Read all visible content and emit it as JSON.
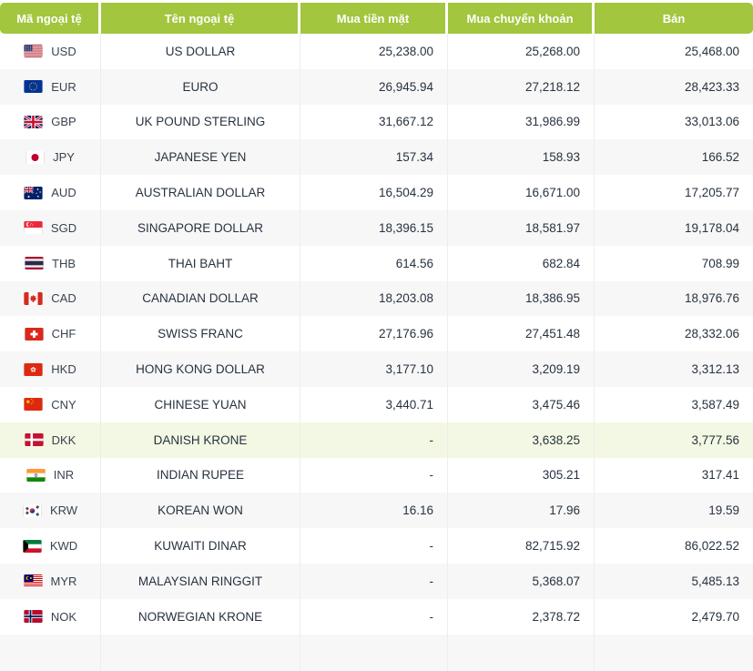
{
  "table": {
    "columns": [
      {
        "key": "code",
        "label": "Mã ngoại tệ"
      },
      {
        "key": "name",
        "label": "Tên ngoại tệ"
      },
      {
        "key": "cash",
        "label": "Mua tiền mặt"
      },
      {
        "key": "transfer",
        "label": "Mua chuyển khoản"
      },
      {
        "key": "sell",
        "label": "Bán"
      }
    ],
    "rows": [
      {
        "code": "USD",
        "flag": "usd-us-flag-icon",
        "name": "US DOLLAR",
        "cash": "25,238.00",
        "transfer": "25,268.00",
        "sell": "25,468.00",
        "highlighted": false
      },
      {
        "code": "EUR",
        "flag": "eur-eu-flag-icon",
        "name": "EURO",
        "cash": "26,945.94",
        "transfer": "27,218.12",
        "sell": "28,423.33",
        "highlighted": false
      },
      {
        "code": "GBP",
        "flag": "gbp-uk-flag-icon",
        "name": "UK POUND STERLING",
        "cash": "31,667.12",
        "transfer": "31,986.99",
        "sell": "33,013.06",
        "highlighted": false
      },
      {
        "code": "JPY",
        "flag": "jpy-japan-flag-icon",
        "name": "JAPANESE YEN",
        "cash": "157.34",
        "transfer": "158.93",
        "sell": "166.52",
        "highlighted": false
      },
      {
        "code": "AUD",
        "flag": "aud-australia-flag-icon",
        "name": "AUSTRALIAN DOLLAR",
        "cash": "16,504.29",
        "transfer": "16,671.00",
        "sell": "17,205.77",
        "highlighted": false
      },
      {
        "code": "SGD",
        "flag": "sgd-singapore-flag-icon",
        "name": "SINGAPORE DOLLAR",
        "cash": "18,396.15",
        "transfer": "18,581.97",
        "sell": "19,178.04",
        "highlighted": false
      },
      {
        "code": "THB",
        "flag": "thb-thailand-flag-icon",
        "name": "THAI BAHT",
        "cash": "614.56",
        "transfer": "682.84",
        "sell": "708.99",
        "highlighted": false
      },
      {
        "code": "CAD",
        "flag": "cad-canada-flag-icon",
        "name": "CANADIAN DOLLAR",
        "cash": "18,203.08",
        "transfer": "18,386.95",
        "sell": "18,976.76",
        "highlighted": false
      },
      {
        "code": "CHF",
        "flag": "chf-switzerland-flag-icon",
        "name": "SWISS FRANC",
        "cash": "27,176.96",
        "transfer": "27,451.48",
        "sell": "28,332.06",
        "highlighted": false
      },
      {
        "code": "HKD",
        "flag": "hkd-hongkong-flag-icon",
        "name": "HONG KONG DOLLAR",
        "cash": "3,177.10",
        "transfer": "3,209.19",
        "sell": "3,312.13",
        "highlighted": false
      },
      {
        "code": "CNY",
        "flag": "cny-china-flag-icon",
        "name": "CHINESE YUAN",
        "cash": "3,440.71",
        "transfer": "3,475.46",
        "sell": "3,587.49",
        "highlighted": false
      },
      {
        "code": "DKK",
        "flag": "dkk-denmark-flag-icon",
        "name": "DANISH KRONE",
        "cash": "-",
        "transfer": "3,638.25",
        "sell": "3,777.56",
        "highlighted": true
      },
      {
        "code": "INR",
        "flag": "inr-india-flag-icon",
        "name": "INDIAN RUPEE",
        "cash": "-",
        "transfer": "305.21",
        "sell": "317.41",
        "highlighted": false
      },
      {
        "code": "KRW",
        "flag": "krw-korea-flag-icon",
        "name": "KOREAN WON",
        "cash": "16.16",
        "transfer": "17.96",
        "sell": "19.59",
        "highlighted": false
      },
      {
        "code": "KWD",
        "flag": "kwd-kuwait-flag-icon",
        "name": "KUWAITI DINAR",
        "cash": "-",
        "transfer": "82,715.92",
        "sell": "86,022.52",
        "highlighted": false
      },
      {
        "code": "MYR",
        "flag": "myr-malaysia-flag-icon",
        "name": "MALAYSIAN RINGGIT",
        "cash": "-",
        "transfer": "5,368.07",
        "sell": "5,485.13",
        "highlighted": false
      },
      {
        "code": "NOK",
        "flag": "nok-norway-flag-icon",
        "name": "NORWEGIAN KRONE",
        "cash": "-",
        "transfer": "2,378.72",
        "sell": "2,479.70",
        "highlighted": false
      }
    ]
  },
  "colors": {
    "header_bg": "#a2c63d",
    "header_text": "#ffffff",
    "row_text": "#273240",
    "alt_row_bg": "#f7f7f7",
    "highlight_row_bg": "#f3f8e4",
    "divider": "#ededed"
  }
}
